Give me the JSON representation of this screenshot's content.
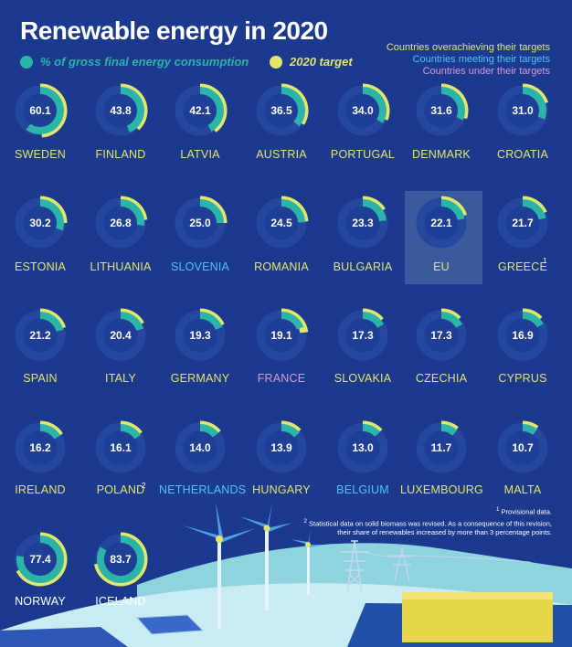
{
  "header": {
    "title": "Renewable energy in 2020",
    "legend_share": "% of gross final energy consumption",
    "legend_target": "2020 target",
    "status_over": "Countries overachieving their targets",
    "status_meeting": "Countries meeting their targets",
    "status_under": "Countries under their targets"
  },
  "colors": {
    "background": "#1b3a8e",
    "share": "#2bb4a8",
    "target": "#e3e66a",
    "over": "#e3e66a",
    "meeting": "#4fc3f7",
    "under": "#d59ad8",
    "neutral": "#ffffff",
    "eu_box": "#3a5a9e"
  },
  "notes": {
    "sup_greece": "1",
    "sup_poland": "2",
    "note1_mark": "1",
    "note1": "Provisional data.",
    "note2_mark": "2",
    "note2_line1": "Statistical data on solid biomass was revised. As a consequence of this revision,",
    "note2_line2": "their share of renewables increased by more than 3 percentage points."
  },
  "chart_data": {
    "type": "donut-grid",
    "title": "Renewable energy in 2020",
    "unit": "% of gross final energy consumption",
    "series": [
      {
        "name": "% of gross final energy consumption",
        "color": "#2bb4a8"
      },
      {
        "name": "2020 target",
        "color": "#e3e66a"
      }
    ],
    "countries": [
      {
        "name": "SWEDEN",
        "value": 60.1,
        "target": 49,
        "status": "over"
      },
      {
        "name": "FINLAND",
        "value": 43.8,
        "target": 38,
        "status": "over"
      },
      {
        "name": "LATVIA",
        "value": 42.1,
        "target": 40,
        "status": "over"
      },
      {
        "name": "AUSTRIA",
        "value": 36.5,
        "target": 34,
        "status": "over"
      },
      {
        "name": "PORTUGAL",
        "value": 34.0,
        "target": 31,
        "status": "over"
      },
      {
        "name": "DENMARK",
        "value": 31.6,
        "target": 30,
        "status": "over"
      },
      {
        "name": "CROATIA",
        "value": 31.0,
        "target": 20,
        "status": "over"
      },
      {
        "name": "ESTONIA",
        "value": 30.2,
        "target": 25,
        "status": "over"
      },
      {
        "name": "LITHUANIA",
        "value": 26.8,
        "target": 23,
        "status": "over"
      },
      {
        "name": "SLOVENIA",
        "value": 25.0,
        "target": 25,
        "status": "meeting"
      },
      {
        "name": "ROMANIA",
        "value": 24.5,
        "target": 24,
        "status": "over"
      },
      {
        "name": "BULGARIA",
        "value": 23.3,
        "target": 16,
        "status": "over"
      },
      {
        "name": "EU",
        "value": 22.1,
        "target": 20,
        "status": "over"
      },
      {
        "name": "GREECE",
        "value": 21.7,
        "target": 18,
        "status": "over"
      },
      {
        "name": "SPAIN",
        "value": 21.2,
        "target": 20,
        "status": "over"
      },
      {
        "name": "ITALY",
        "value": 20.4,
        "target": 17,
        "status": "over"
      },
      {
        "name": "GERMANY",
        "value": 19.3,
        "target": 18,
        "status": "over"
      },
      {
        "name": "FRANCE",
        "value": 19.1,
        "target": 23,
        "status": "under"
      },
      {
        "name": "SLOVAKIA",
        "value": 17.3,
        "target": 14,
        "status": "over"
      },
      {
        "name": "CZECHIA",
        "value": 17.3,
        "target": 13,
        "status": "over"
      },
      {
        "name": "CYPRUS",
        "value": 16.9,
        "target": 13,
        "status": "over"
      },
      {
        "name": "IRELAND",
        "value": 16.2,
        "target": 16,
        "status": "over"
      },
      {
        "name": "POLAND",
        "value": 16.1,
        "target": 15,
        "status": "over"
      },
      {
        "name": "NETHERLANDS",
        "value": 14.0,
        "target": 14,
        "status": "meeting"
      },
      {
        "name": "HUNGARY",
        "value": 13.9,
        "target": 13,
        "status": "over"
      },
      {
        "name": "BELGIUM",
        "value": 13.0,
        "target": 13,
        "status": "meeting"
      },
      {
        "name": "LUXEMBOURG",
        "value": 11.7,
        "target": 11,
        "status": "over"
      },
      {
        "name": "MALTA",
        "value": 10.7,
        "target": 10,
        "status": "over"
      },
      {
        "name": "NORWAY",
        "value": 77.4,
        "target": 67.5,
        "status": "neutral"
      },
      {
        "name": "ICELAND",
        "value": 83.7,
        "target": 72,
        "status": "neutral"
      }
    ]
  }
}
